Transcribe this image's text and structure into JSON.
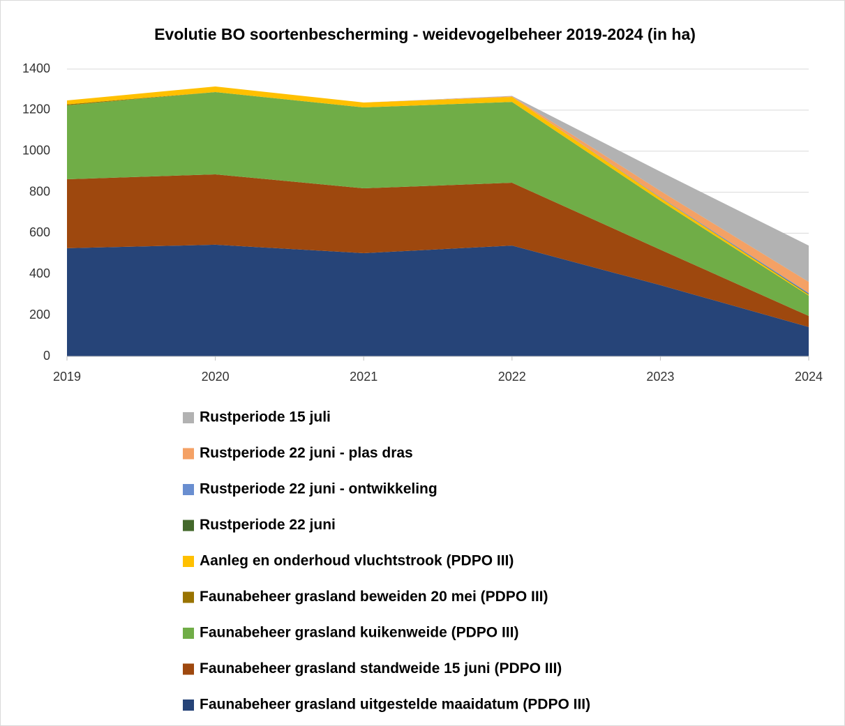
{
  "chart_data": {
    "type": "stacked_area",
    "title": "Evolutie BO soortenbescherming - weidevogelbeheer 2019-2024 (in ha)",
    "x": [
      2019,
      2020,
      2021,
      2022,
      2023,
      2024
    ],
    "xlim": [
      2019,
      2024
    ],
    "xticks": [
      2019,
      2020,
      2021,
      2022,
      2023,
      2024
    ],
    "ylim": [
      0,
      1400
    ],
    "yticks": [
      0,
      200,
      400,
      600,
      800,
      1000,
      1200,
      1400
    ],
    "grid": true,
    "series": [
      {
        "name": "Faunabeheer grasland uitgestelde maaidatum (PDPO III)",
        "color": "#264478",
        "values": [
          527,
          544,
          503,
          540,
          347,
          143
        ]
      },
      {
        "name": "Faunabeheer grasland standweide 15 juni (PDPO III)",
        "color": "#9e480e",
        "values": [
          336,
          343,
          316,
          306,
          173,
          54
        ]
      },
      {
        "name": "Faunabeheer grasland kuikenweide (PDPO III)",
        "color": "#70ad47",
        "values": [
          360,
          401,
          394,
          394,
          238,
          99
        ]
      },
      {
        "name": "Faunabeheer grasland beweiden 20 mei (PDPO III)",
        "color": "#997300",
        "values": [
          5,
          0,
          0,
          0,
          0,
          0
        ]
      },
      {
        "name": "Aanleg en onderhoud vluchtstrook (PDPO III)",
        "color": "#ffc000",
        "values": [
          19,
          27,
          24,
          24,
          15,
          5
        ]
      },
      {
        "name": "Rustperiode 22 juni",
        "color": "#43682b",
        "values": [
          0,
          0,
          0,
          0,
          0,
          3
        ]
      },
      {
        "name": "Rustperiode 22 juni - ontwikkeling",
        "color": "#698ed0",
        "values": [
          0,
          0,
          0,
          0,
          3,
          5
        ]
      },
      {
        "name": "Rustperiode 22 juni - plas dras",
        "color": "#f4a165",
        "values": [
          0,
          0,
          0,
          3,
          30,
          54
        ]
      },
      {
        "name": "Rustperiode 15 juli",
        "color": "#b2b2b2",
        "values": [
          0,
          0,
          0,
          2,
          94,
          177
        ]
      }
    ]
  }
}
